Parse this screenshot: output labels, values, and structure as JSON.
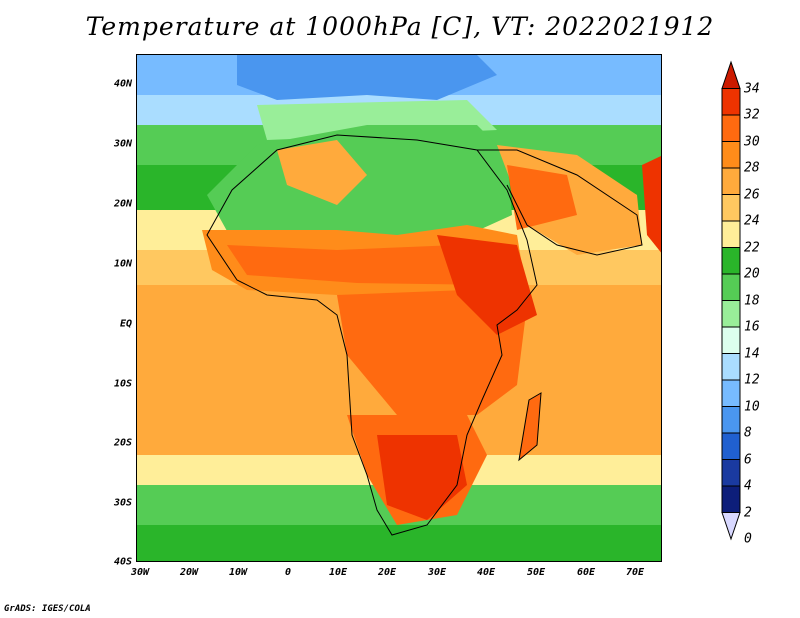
{
  "title": "Temperature at 1000hPa [C], VT: 2022021912",
  "credit": "GrADS: IGES/COLA",
  "lat_labels": [
    "40N",
    "30N",
    "20N",
    "10N",
    "EQ",
    "10S",
    "20S",
    "30S",
    "40S"
  ],
  "lon_labels": [
    "30W",
    "20W",
    "10W",
    "0",
    "10E",
    "20E",
    "30E",
    "40E",
    "50E",
    "60E",
    "70E"
  ],
  "colorbar": {
    "labels": [
      "34",
      "32",
      "30",
      "28",
      "26",
      "24",
      "22",
      "20",
      "18",
      "16",
      "14",
      "12",
      "10",
      "8",
      "6",
      "4",
      "2",
      "0"
    ],
    "colors": [
      "#cc1a00",
      "#ee3300",
      "#ff6a10",
      "#ff8c1a",
      "#ffaa3c",
      "#ffc860",
      "#ffee99",
      "#2ab52a",
      "#55cc55",
      "#99ee99",
      "#ddffee",
      "#aaddff",
      "#77bbff",
      "#4a96ef",
      "#2060d0",
      "#1a3aa0",
      "#0d1e7a",
      "#d8d8ff"
    ]
  }
}
